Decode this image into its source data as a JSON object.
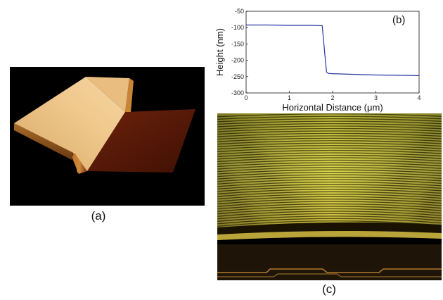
{
  "panels": {
    "a": {
      "caption": "(a)"
    },
    "b": {
      "tag": "(b)"
    },
    "c": {
      "caption": "(c)"
    }
  },
  "chart_data": {
    "type": "line",
    "title": "",
    "xlabel": "Horizontal Distance (μm)",
    "ylabel": "Height (nm)",
    "xlim": [
      0,
      4
    ],
    "ylim": [
      -300,
      -50
    ],
    "xticks": [
      0,
      1,
      2,
      3,
      4
    ],
    "yticks": [
      -50,
      -100,
      -150,
      -200,
      -250,
      -300
    ],
    "grid": false,
    "line_color": "#2a35a8",
    "series": [
      {
        "x": [
          0,
          0.5,
          1.0,
          1.5,
          1.76,
          1.82,
          1.86,
          1.9,
          2.0,
          2.5,
          3.0,
          3.5,
          4.0
        ],
        "y": [
          -92,
          -92,
          -93,
          -93,
          -94,
          -180,
          -236,
          -240,
          -241,
          -243,
          -245,
          -246,
          -247
        ]
      }
    ]
  },
  "colors": {
    "terrace_light": "#e6c084",
    "terrace_dark": "#5a1a08",
    "fringe_yellow": "#d8d24a"
  }
}
